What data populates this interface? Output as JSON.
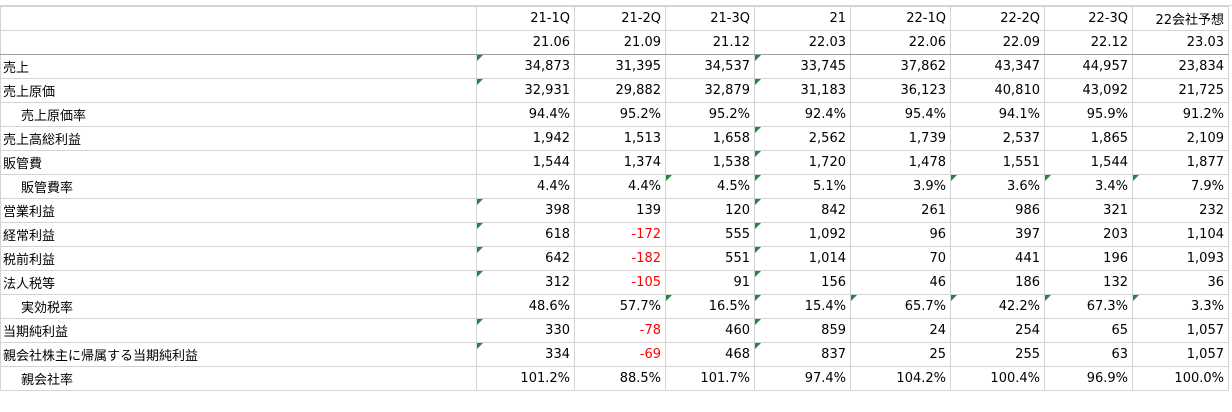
{
  "header": {
    "periods": [
      "21-1Q",
      "21-2Q",
      "21-3Q",
      "21",
      "22-1Q",
      "22-2Q",
      "22-3Q",
      "22会社予想"
    ],
    "dates": [
      "21.06",
      "21.09",
      "21.12",
      "22.03",
      "22.06",
      "22.09",
      "22.12",
      "23.03"
    ]
  },
  "rows": [
    {
      "label": "売上",
      "indent": false,
      "values": [
        "34,873",
        "31,395",
        "34,537",
        "33,745",
        "37,862",
        "43,347",
        "44,957",
        "23,834"
      ]
    },
    {
      "label": "売上原価",
      "indent": false,
      "values": [
        "32,931",
        "29,882",
        "32,879",
        "31,183",
        "36,123",
        "40,810",
        "43,092",
        "21,725"
      ]
    },
    {
      "label": "売上原価率",
      "indent": true,
      "values": [
        "94.4%",
        "95.2%",
        "95.2%",
        "92.4%",
        "95.4%",
        "94.1%",
        "95.9%",
        "91.2%"
      ]
    },
    {
      "label": "売上高総利益",
      "indent": false,
      "values": [
        "1,942",
        "1,513",
        "1,658",
        "2,562",
        "1,739",
        "2,537",
        "1,865",
        "2,109"
      ]
    },
    {
      "label": "販管費",
      "indent": false,
      "values": [
        "1,544",
        "1,374",
        "1,538",
        "1,720",
        "1,478",
        "1,551",
        "1,544",
        "1,877"
      ]
    },
    {
      "label": "販管費率",
      "indent": true,
      "values": [
        "4.4%",
        "4.4%",
        "4.5%",
        "5.1%",
        "3.9%",
        "3.6%",
        "3.4%",
        "7.9%"
      ]
    },
    {
      "label": "営業利益",
      "indent": false,
      "values": [
        "398",
        "139",
        "120",
        "842",
        "261",
        "986",
        "321",
        "232"
      ]
    },
    {
      "label": "経常利益",
      "indent": false,
      "values": [
        "618",
        "-172",
        "555",
        "1,092",
        "96",
        "397",
        "203",
        "1,104"
      ]
    },
    {
      "label": "税前利益",
      "indent": false,
      "values": [
        "642",
        "-182",
        "551",
        "1,014",
        "70",
        "441",
        "196",
        "1,093"
      ]
    },
    {
      "label": "法人税等",
      "indent": false,
      "values": [
        "312",
        "-105",
        "91",
        "156",
        "46",
        "186",
        "132",
        "36"
      ]
    },
    {
      "label": "実効税率",
      "indent": true,
      "values": [
        "48.6%",
        "57.7%",
        "16.5%",
        "15.4%",
        "65.7%",
        "42.2%",
        "67.3%",
        "3.3%"
      ]
    },
    {
      "label": "当期純利益",
      "indent": false,
      "values": [
        "330",
        "-78",
        "460",
        "859",
        "24",
        "254",
        "65",
        "1,057"
      ]
    },
    {
      "label": "親会社株主に帰属する当期純利益",
      "indent": false,
      "values": [
        "334",
        "-69",
        "468",
        "837",
        "25",
        "255",
        "63",
        "1,057"
      ]
    },
    {
      "label": "親会社率",
      "indent": true,
      "values": [
        "101.2%",
        "88.5%",
        "101.7%",
        "97.4%",
        "104.2%",
        "100.4%",
        "96.9%",
        "100.0%"
      ]
    }
  ],
  "colors": {
    "negative": "#ff0000",
    "marker": "#1e8a3a",
    "grid": "#d4d4d4"
  }
}
